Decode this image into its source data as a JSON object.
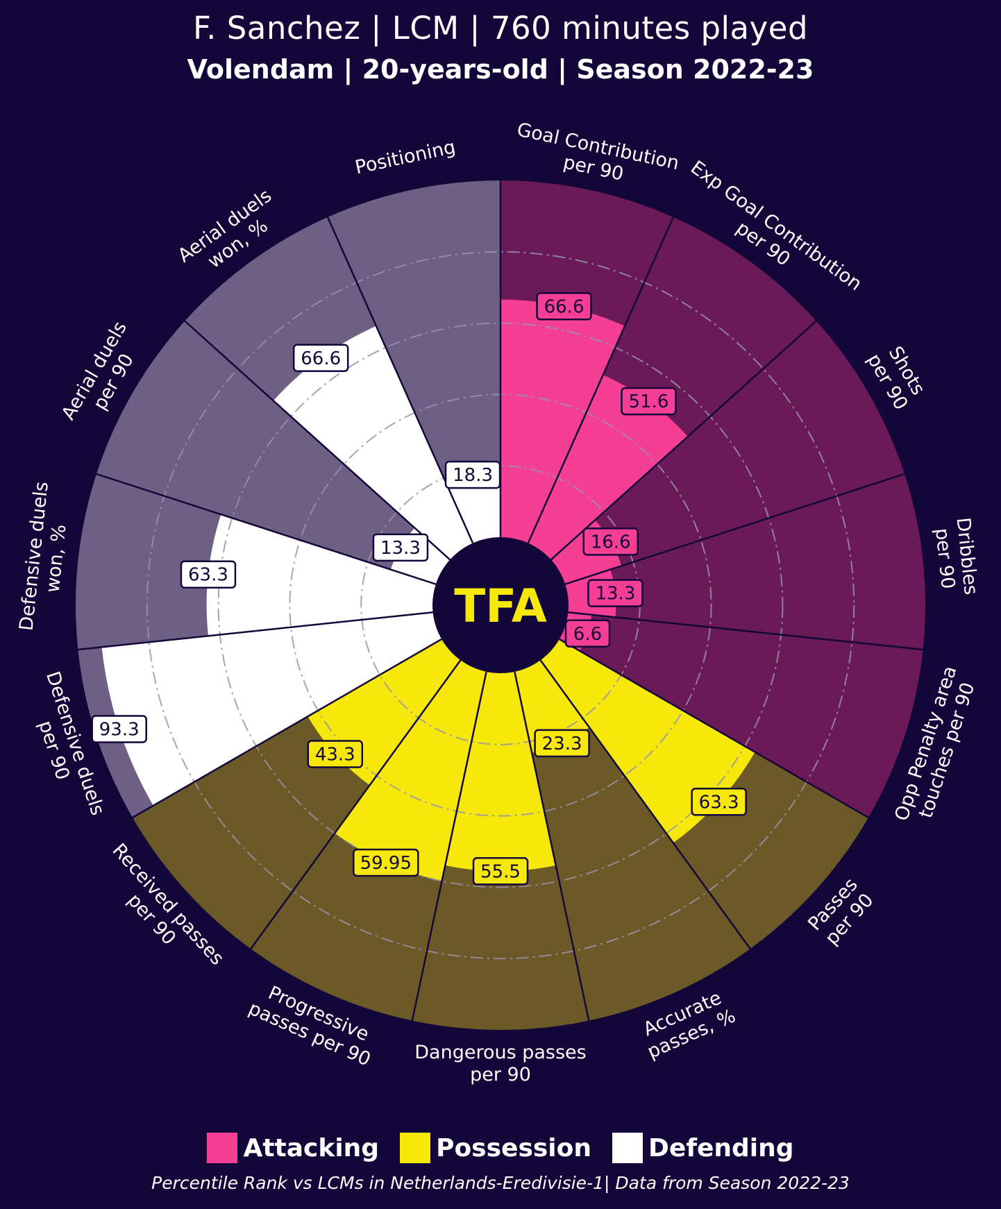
{
  "header": {
    "title": "F. Sanchez | LCM | 760 minutes played",
    "subtitle": "Volendam | 20-years-old | Season 2022-23"
  },
  "chart_data": {
    "type": "polar-bar",
    "center_logo": "TFA",
    "rmax": 100,
    "grid": true,
    "categories": [
      {
        "label": "Goal Contribution\nper 90",
        "value": 66.6,
        "value_label": "66.6",
        "group": "Attacking"
      },
      {
        "label": "Exp Goal Contribution\nper 90",
        "value": 51.6,
        "value_label": "51.6",
        "group": "Attacking"
      },
      {
        "label": "Shots\nper 90",
        "value": 16.6,
        "value_label": "16.6",
        "group": "Attacking"
      },
      {
        "label": "Dribbles\nper 90",
        "value": 13.3,
        "value_label": "13.3",
        "group": "Attacking"
      },
      {
        "label": "Opp Penalty area\ntouches per 90",
        "value": 6.6,
        "value_label": "6.6",
        "group": "Attacking"
      },
      {
        "label": "Passes\nper 90",
        "value": 63.3,
        "value_label": "63.3",
        "group": "Possession"
      },
      {
        "label": "Accurate\npasses, %",
        "value": 23.3,
        "value_label": "23.3",
        "group": "Possession"
      },
      {
        "label": "Dangerous passes\nper 90",
        "value": 55.5,
        "value_label": "55.5",
        "group": "Possession"
      },
      {
        "label": "Progressive\npasses per 90",
        "value": 59.95,
        "value_label": "59.95",
        "group": "Possession"
      },
      {
        "label": "Received passes\nper 90",
        "value": 43.3,
        "value_label": "43.3",
        "group": "Possession"
      },
      {
        "label": "Defensive duels\nper 90",
        "value": 93.3,
        "value_label": "93.3",
        "group": "Defending"
      },
      {
        "label": "Defensive duels\nwon, %",
        "value": 63.3,
        "value_label": "63.3",
        "group": "Defending"
      },
      {
        "label": "Aerial duels\nper 90",
        "value": 13.3,
        "value_label": "13.3",
        "group": "Defending"
      },
      {
        "label": "Aerial duels\nwon, %",
        "value": 66.6,
        "value_label": "66.6",
        "group": "Defending"
      },
      {
        "label": "Positioning",
        "value": 18.3,
        "value_label": "18.3",
        "group": "Defending"
      }
    ],
    "groups": [
      {
        "name": "Attacking",
        "color": "#f53f94",
        "bg": "#6b1a58",
        "label_fill": "#f53f94",
        "label_text": "#130638"
      },
      {
        "name": "Possession",
        "color": "#f5e80a",
        "bg": "#6b5a28",
        "label_fill": "#f5e80a",
        "label_text": "#130638"
      },
      {
        "name": "Defending",
        "color": "#ffffff",
        "bg": "#6d6084",
        "label_fill": "#ffffff",
        "label_text": "#130638"
      }
    ]
  },
  "legend": {
    "items": [
      {
        "label": "Attacking",
        "color": "#f53f94"
      },
      {
        "label": "Possession",
        "color": "#f5e80a"
      },
      {
        "label": "Defending",
        "color": "#ffffff"
      }
    ]
  },
  "footer": {
    "note": "Percentile Rank vs LCMs in Netherlands-Eredivisie-1| Data from Season 2022-23"
  }
}
